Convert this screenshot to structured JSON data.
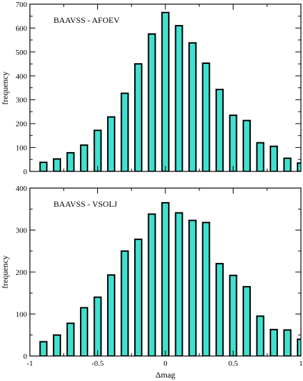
{
  "chart_data": [
    {
      "type": "bar",
      "title": "BAAVSS - AFOEV",
      "xlabel": "",
      "ylabel": "frequency",
      "xlim": [
        -1,
        1
      ],
      "ylim": [
        0,
        700
      ],
      "x_ticks": [
        -1,
        -0.5,
        0,
        0.5,
        1
      ],
      "x_tick_labels": [
        "",
        "",
        "",
        "",
        ""
      ],
      "y_ticks": [
        0,
        100,
        200,
        300,
        400,
        500,
        600,
        700
      ],
      "y_tick_labels": [
        "0",
        "100",
        "200",
        "300",
        "400",
        "500",
        "600",
        "700"
      ],
      "x": [
        -0.9,
        -0.8,
        -0.7,
        -0.6,
        -0.5,
        -0.4,
        -0.3,
        -0.2,
        -0.1,
        0.0,
        0.1,
        0.2,
        0.3,
        0.4,
        0.5,
        0.6,
        0.7,
        0.8,
        0.9,
        1.0
      ],
      "values": [
        38,
        52,
        78,
        110,
        172,
        228,
        327,
        450,
        575,
        665,
        610,
        538,
        453,
        343,
        235,
        213,
        120,
        105,
        55,
        35
      ],
      "bar_width": 0.05,
      "bar_color": "#40e0d0",
      "grid": false,
      "legend": "none"
    },
    {
      "type": "bar",
      "title": "BAAVSS - VSOLJ",
      "xlabel": "Δmag",
      "ylabel": "frequency",
      "xlim": [
        -1,
        1
      ],
      "ylim": [
        0,
        400
      ],
      "x_ticks": [
        -1,
        -0.5,
        0,
        0.5,
        1
      ],
      "x_tick_labels": [
        "-1",
        "-0.5",
        "0",
        "0.5",
        "1"
      ],
      "y_ticks": [
        0,
        100,
        200,
        300,
        400
      ],
      "y_tick_labels": [
        "0",
        "100",
        "200",
        "300",
        "400"
      ],
      "x": [
        -0.9,
        -0.8,
        -0.7,
        -0.6,
        -0.5,
        -0.4,
        -0.3,
        -0.2,
        -0.1,
        0.0,
        0.1,
        0.2,
        0.3,
        0.4,
        0.5,
        0.6,
        0.7,
        0.8,
        0.9,
        1.0
      ],
      "values": [
        34,
        50,
        78,
        115,
        140,
        193,
        250,
        278,
        338,
        365,
        341,
        323,
        318,
        220,
        192,
        165,
        95,
        63,
        62,
        40
      ],
      "bar_width": 0.05,
      "bar_color": "#40e0d0",
      "grid": false,
      "legend": "none"
    }
  ]
}
